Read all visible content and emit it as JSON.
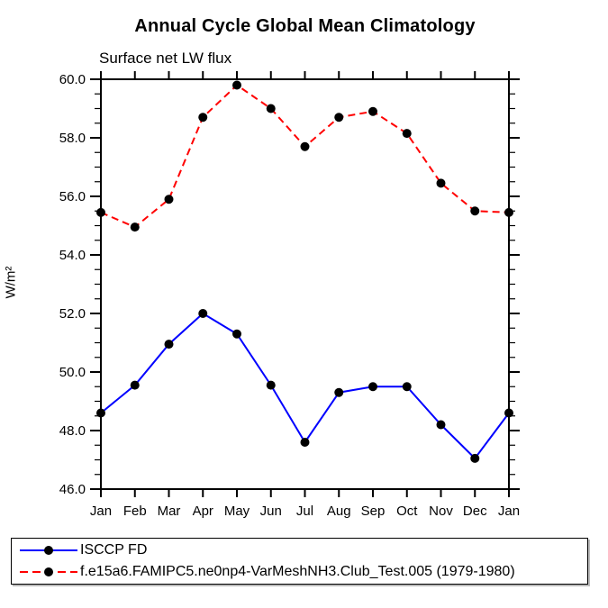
{
  "header": {
    "title": "Annual Cycle Global Mean Climatology",
    "subtitle": "Surface net LW flux"
  },
  "axes": {
    "y_label": "W/m²",
    "y_tick_labels": [
      "46.0",
      "48.0",
      "50.0",
      "52.0",
      "54.0",
      "56.0",
      "58.0",
      "60.0"
    ],
    "x_tick_labels": [
      "Jan",
      "Feb",
      "Mar",
      "Apr",
      "May",
      "Jun",
      "Jul",
      "Aug",
      "Sep",
      "Oct",
      "Nov",
      "Dec",
      "Jan"
    ]
  },
  "colors": {
    "series1": "#0000ff",
    "series2": "#ff0000",
    "marker": "#000000",
    "axis": "#000000",
    "background": "#ffffff"
  },
  "legend": {
    "entries": [
      {
        "label": "ISCCP FD",
        "color": "#0000ff",
        "style": "solid",
        "marker": "circle"
      },
      {
        "label": "f.e15a6.FAMIPC5.ne0np4-VarMeshNH3.Club_Test.005 (1979-1980)",
        "color": "#ff0000",
        "style": "dashed",
        "marker": "circle"
      }
    ]
  },
  "chart_data": {
    "type": "line",
    "title": "Annual Cycle Global Mean Climatology",
    "subtitle": "Surface net LW flux",
    "xlabel": "",
    "ylabel": "W/m²",
    "categories": [
      "Jan",
      "Feb",
      "Mar",
      "Apr",
      "May",
      "Jun",
      "Jul",
      "Aug",
      "Sep",
      "Oct",
      "Nov",
      "Dec",
      "Jan"
    ],
    "series": [
      {
        "name": "ISCCP FD",
        "color": "#0000ff",
        "line_style": "solid",
        "marker": "circle",
        "marker_color": "#000000",
        "values": [
          48.6,
          49.55,
          50.95,
          52.0,
          51.3,
          49.55,
          47.6,
          49.3,
          49.5,
          49.5,
          48.2,
          47.05,
          48.6
        ]
      },
      {
        "name": "f.e15a6.FAMIPC5.ne0np4-VarMeshNH3.Club_Test.005 (1979-1980)",
        "color": "#ff0000",
        "line_style": "dashed",
        "marker": "circle",
        "marker_color": "#000000",
        "values": [
          55.45,
          54.95,
          55.9,
          58.7,
          59.8,
          59.0,
          57.7,
          58.7,
          58.9,
          58.15,
          56.45,
          55.5,
          55.45
        ]
      }
    ],
    "ylim": [
      46.0,
      60.0
    ],
    "y_major_step": 2.0,
    "y_minor_step": 0.5,
    "grid": false,
    "tick_direction": "out",
    "legend_position": "bottom-left-box"
  }
}
